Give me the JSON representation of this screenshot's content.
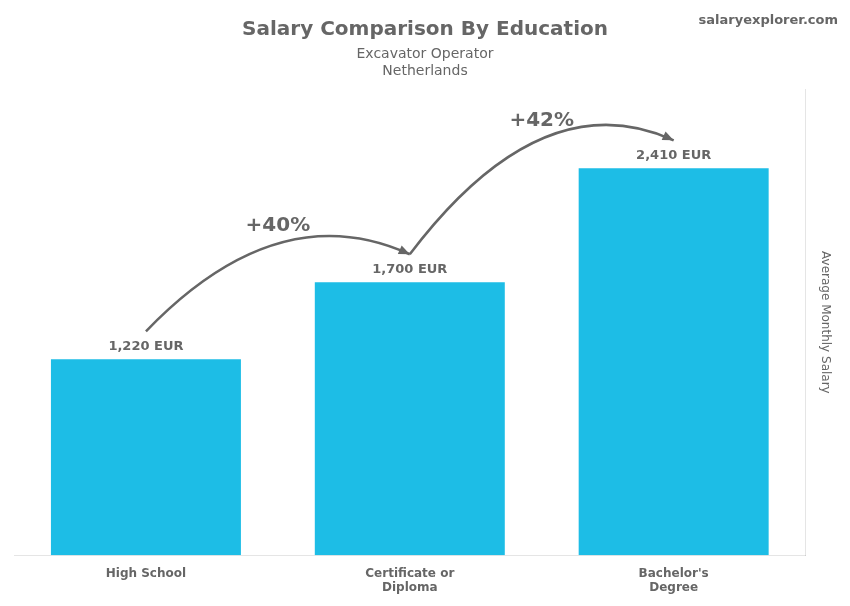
{
  "chart_data": {
    "type": "bar",
    "title": "Salary Comparison By Education",
    "subtitle": [
      "Excavator Operator",
      "Netherlands"
    ],
    "ylabel": "Average Monthly Salary",
    "categories": [
      "High School",
      "Certificate or\nDiploma",
      "Bachelor's\nDegree"
    ],
    "values": [
      1220,
      1700,
      2410
    ],
    "value_labels": [
      "1,220 EUR",
      "1,700 EUR",
      "2,410 EUR"
    ],
    "data_labels": true,
    "color": "#1DBDE6",
    "ylim": [
      0,
      2900
    ],
    "tick_labels": "x",
    "grid": false,
    "annotations": [
      {
        "text": "+40%",
        "from": "High School",
        "to": "Certificate or\nDiploma"
      },
      {
        "text": "+42%",
        "from": "Certificate or\nDiploma",
        "to": "Bachelor's\nDegree"
      },
      {
        "text": "salaryexplorer.com"
      }
    ]
  }
}
